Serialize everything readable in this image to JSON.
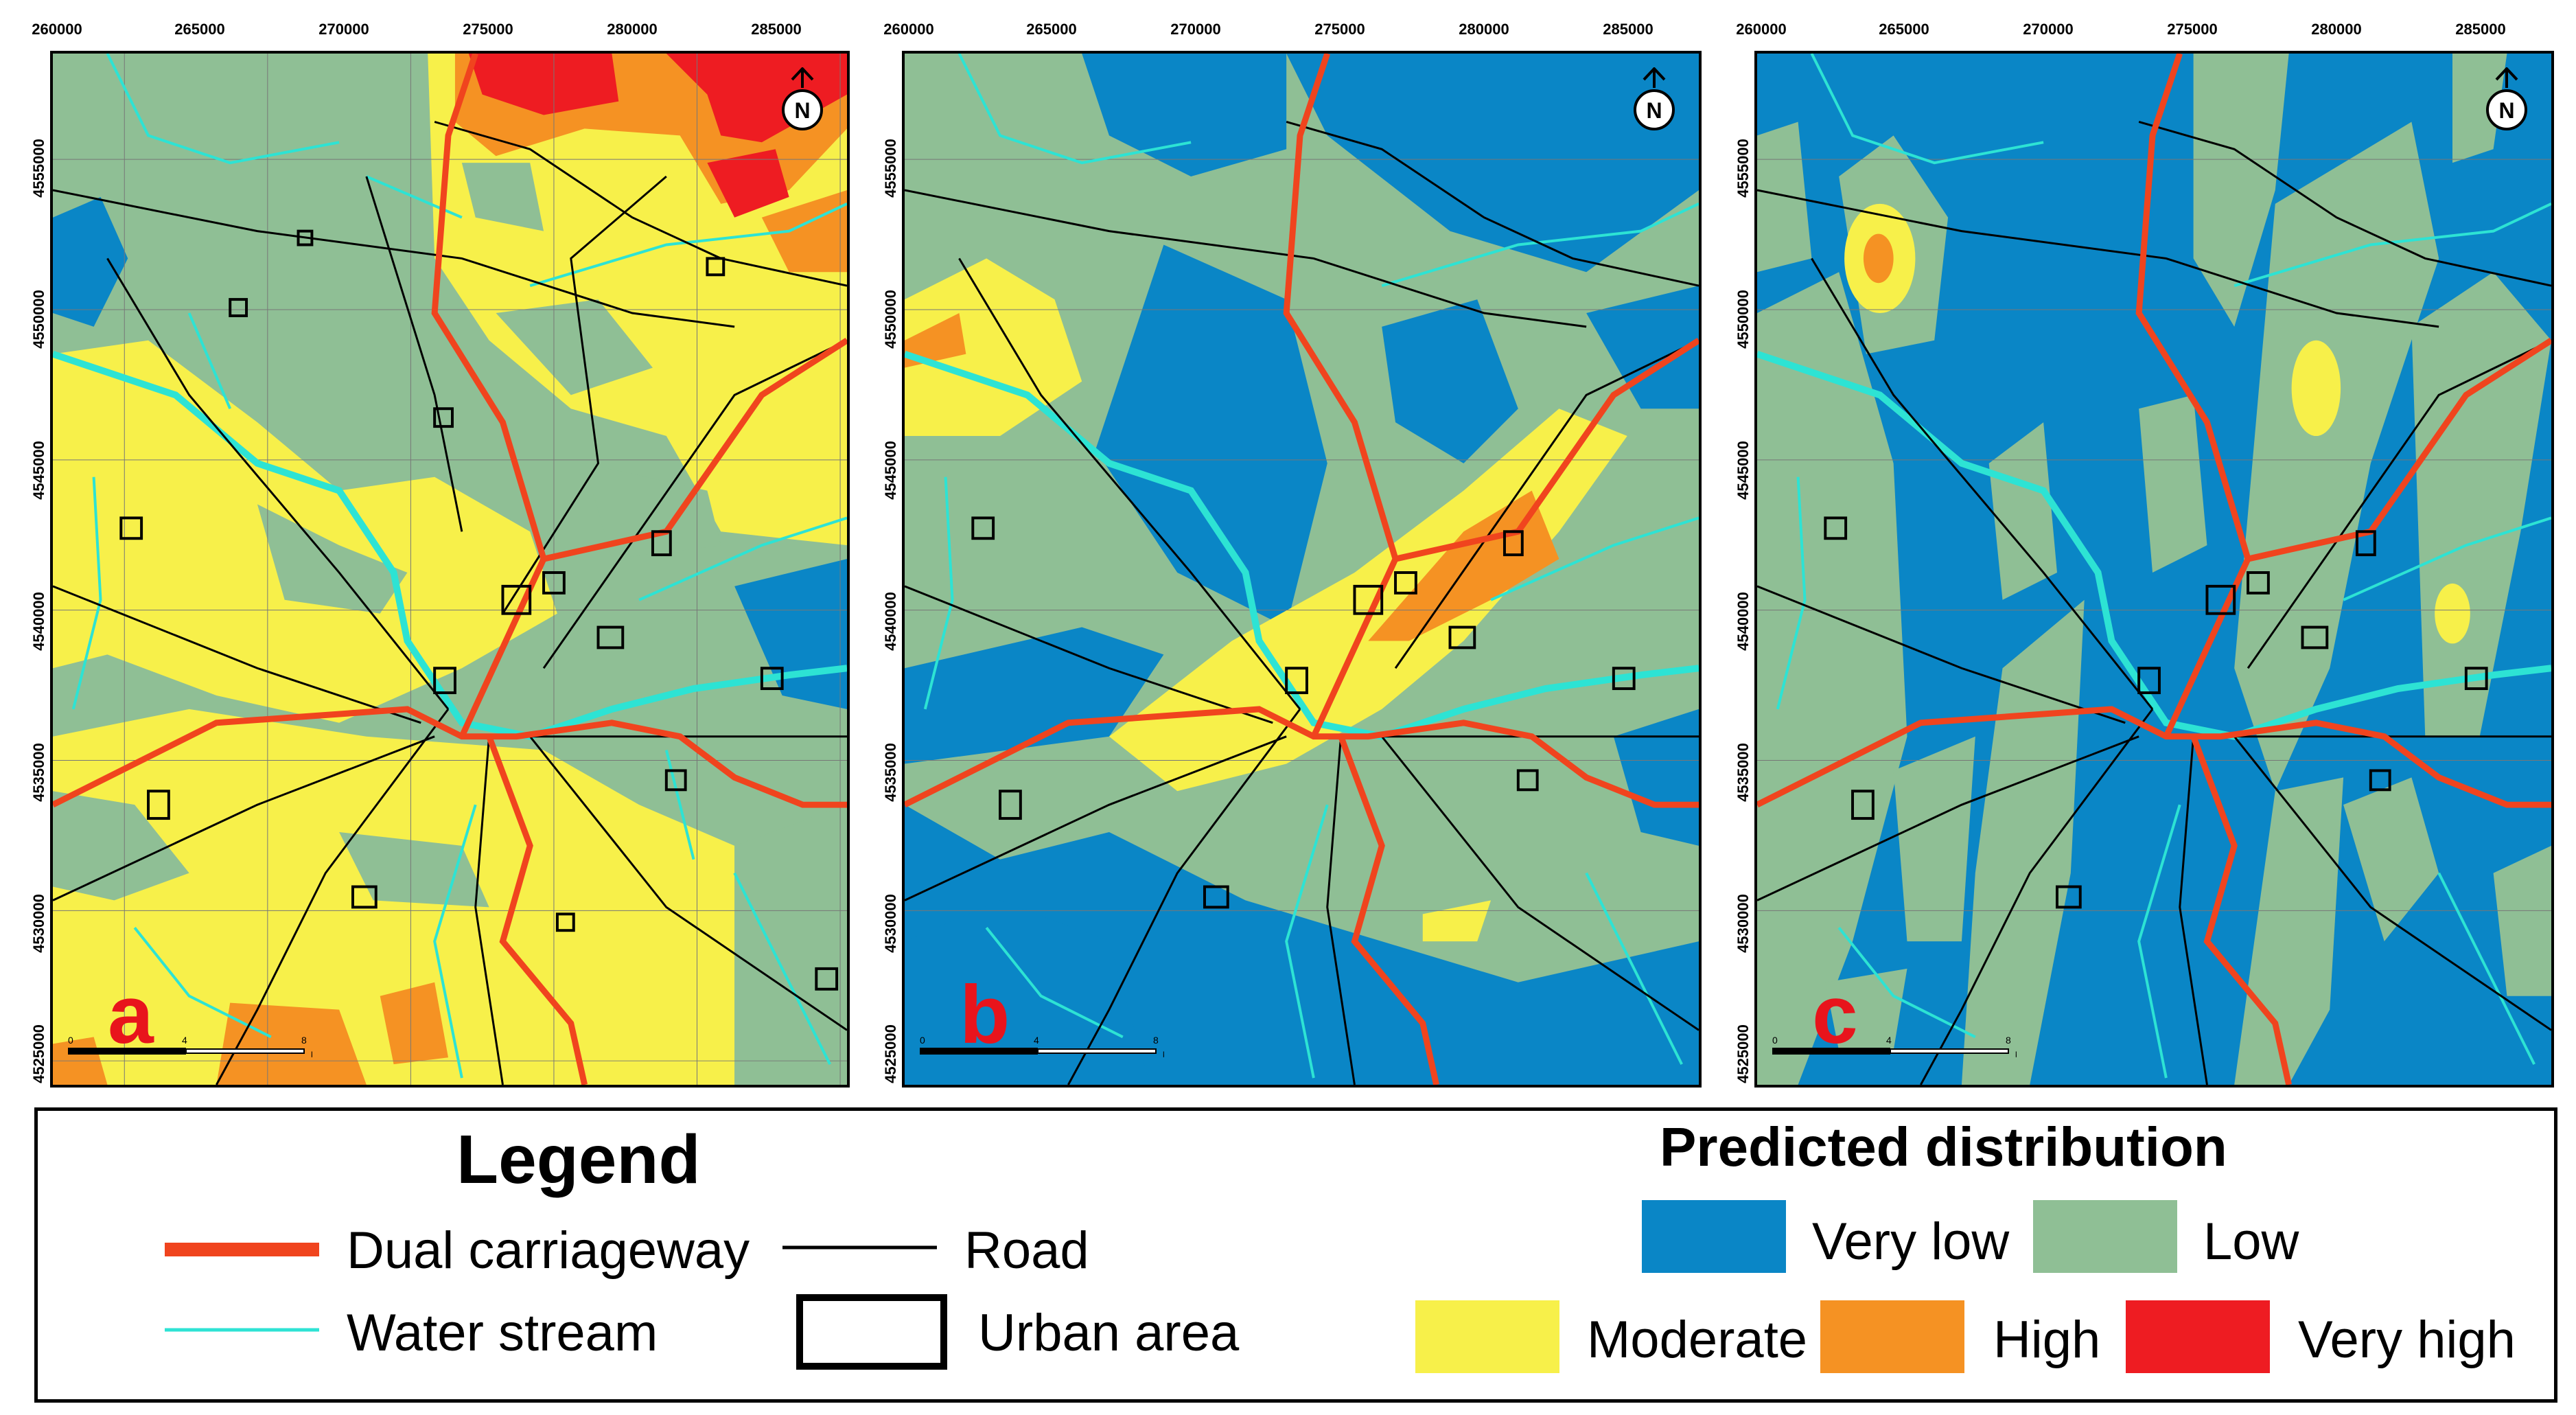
{
  "x_axis_ticks": [
    "260000",
    "265000",
    "270000",
    "275000",
    "280000",
    "285000"
  ],
  "y_axis_ticks": [
    "4555000",
    "4550000",
    "4545000",
    "4540000",
    "4535000",
    "4530000",
    "4525000"
  ],
  "panels": [
    {
      "letter": "a"
    },
    {
      "letter": "b"
    },
    {
      "letter": "c"
    }
  ],
  "scale": {
    "tick0": "0",
    "tick1": "4",
    "tick2": "8",
    "unit": "km"
  },
  "north_label": "N",
  "legend": {
    "title": "Legend",
    "dual_carriageway": "Dual carriageway",
    "road": "Road",
    "water_stream": "Water stream",
    "urban_area": "Urban area"
  },
  "predicted": {
    "title": "Predicted distribution",
    "very_low": "Very low",
    "low": "Low",
    "moderate": "Moderate",
    "high": "High",
    "very_high": "Very high"
  },
  "colors": {
    "very_low": "#0a86c6",
    "low": "#8fbf95",
    "moderate": "#f7f04a",
    "high": "#f59223",
    "very_high": "#ee1c22",
    "dual_carriageway": "#f0441e",
    "water_stream": "#2de3d4",
    "road": "#000000"
  }
}
